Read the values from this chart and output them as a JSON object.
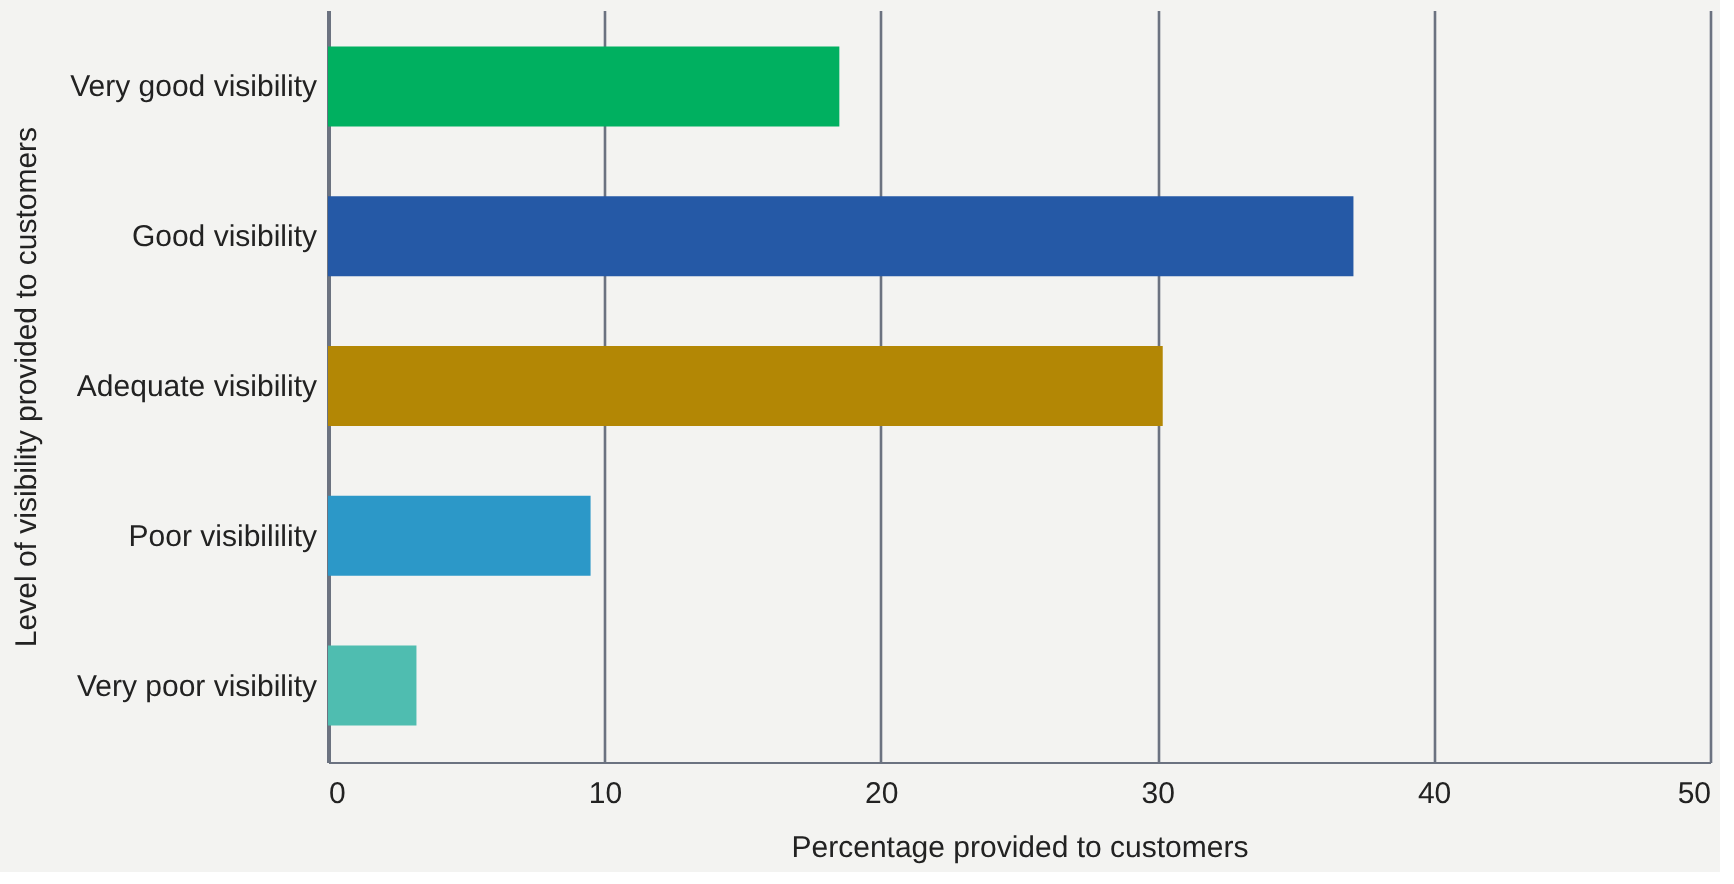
{
  "chart_data": {
    "type": "bar",
    "orientation": "horizontal",
    "categories": [
      "Very good visibility",
      "Good visibility",
      "Adequate visibility",
      "Poor visibilility",
      "Very poor visibility"
    ],
    "values": [
      18.5,
      37.1,
      30.2,
      9.5,
      3.2
    ],
    "colors": [
      "#00b060",
      "#2559a6",
      "#b38705",
      "#2c98c8",
      "#4fbdb0"
    ],
    "xlim": [
      0,
      50
    ],
    "xticks": [
      0,
      10,
      20,
      30,
      40,
      50
    ],
    "xlabel": "Percentage provided to customers",
    "ylabel": "Level of visibility provided to customers",
    "grid": "x"
  }
}
